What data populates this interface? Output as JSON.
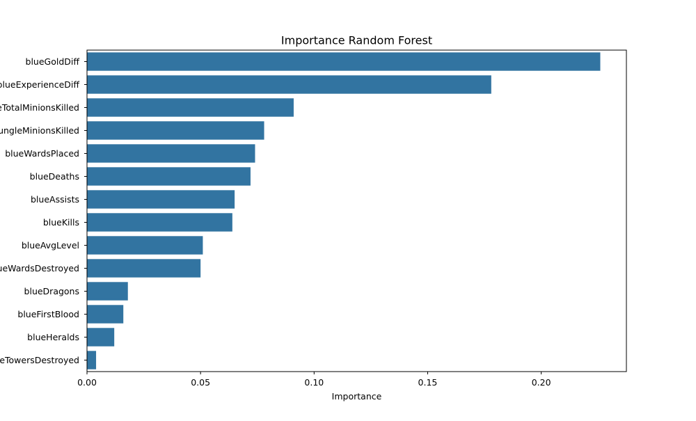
{
  "chart_data": {
    "type": "bar",
    "orientation": "horizontal",
    "title": "Importance Random Forest",
    "xlabel": "Importance",
    "ylabel": "",
    "categories": [
      "blueGoldDiff",
      "blueExperienceDiff",
      "blueTotalMinionsKilled",
      "blueTotalJungleMinionsKilled",
      "blueWardsPlaced",
      "blueDeaths",
      "blueAssists",
      "blueKills",
      "blueAvgLevel",
      "blueWardsDestroyed",
      "blueDragons",
      "blueFirstBlood",
      "blueHeralds",
      "blueTowersDestroyed"
    ],
    "values": [
      0.226,
      0.178,
      0.091,
      0.078,
      0.074,
      0.072,
      0.065,
      0.064,
      0.051,
      0.05,
      0.018,
      0.016,
      0.012,
      0.004
    ],
    "xlim": [
      0,
      0.2375
    ],
    "xticks": [
      0.0,
      0.05,
      0.1,
      0.15,
      0.2
    ],
    "xtick_labels": [
      "0.00",
      "0.05",
      "0.10",
      "0.15",
      "0.20"
    ],
    "bar_color": "#3274a1",
    "grid": false,
    "legend": "none"
  }
}
